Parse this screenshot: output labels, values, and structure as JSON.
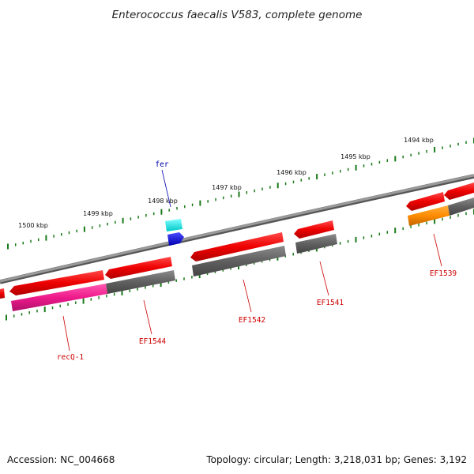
{
  "title": "Enterococcus faecalis V583, complete genome",
  "footer": {
    "accession": "Accession: NC_004668",
    "summary": "Topology: circular; Length: 3,218,031 bp; Genes: 3,192"
  },
  "scale_labels": [
    "1500 kbp",
    "1499 kbp",
    "1498 kbp",
    "1497 kbp",
    "1496 kbp",
    "1495 kbp",
    "1494 kbp"
  ],
  "gene_labels": [
    {
      "name": "recQ-1",
      "color": "#cc0000"
    },
    {
      "name": "EF1544",
      "color": "#cc0000"
    },
    {
      "name": "EF1542",
      "color": "#cc0000"
    },
    {
      "name": "EF1541",
      "color": "#cc0000"
    },
    {
      "name": "EF1539",
      "color": "#cc0000"
    },
    {
      "name": "fer",
      "color": "#0000aa"
    }
  ],
  "colors": {
    "backbone": "#808080",
    "cds_forward": "#ee0000",
    "cds_reverse_grey": "#666666",
    "recq_magenta": "#ee1a8c",
    "orange_feature": "#ff8c00",
    "cyan_feature": "#00e6e6",
    "blue_feature": "#0000ee",
    "tick_green": "#1a7a1a"
  }
}
